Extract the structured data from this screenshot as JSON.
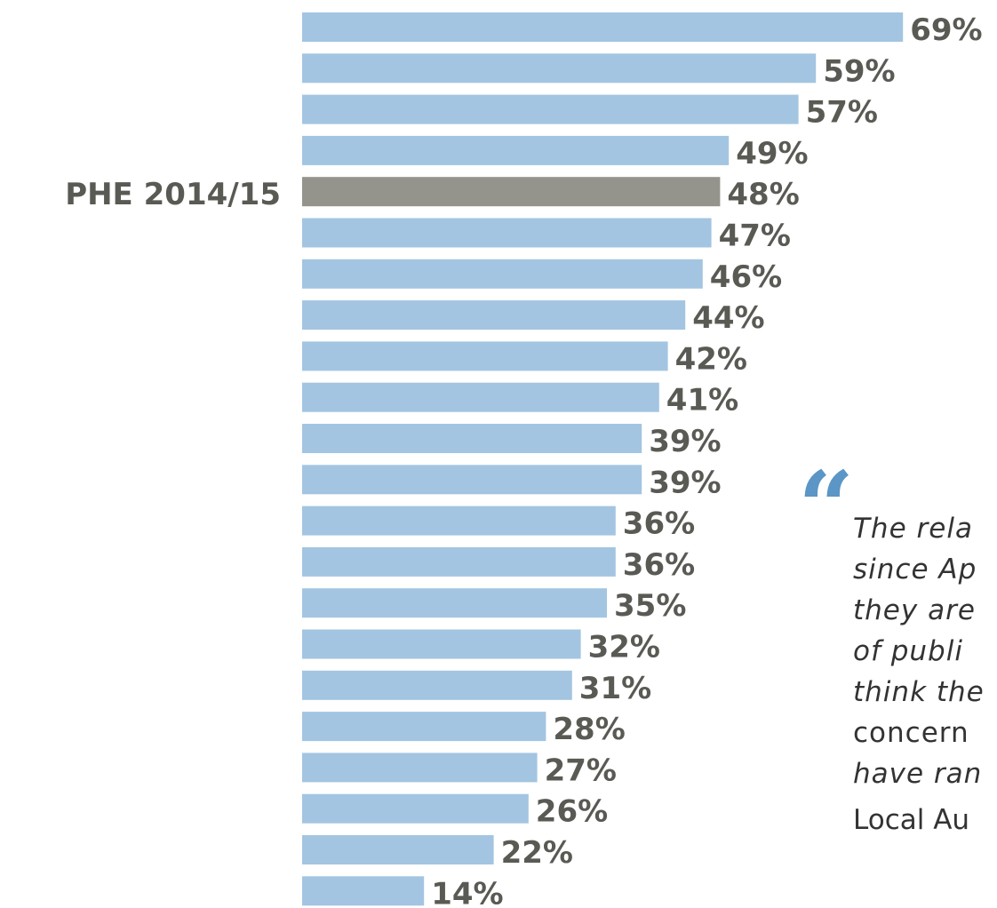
{
  "chart_data": {
    "type": "bar",
    "orientation": "horizontal",
    "categories": [
      "",
      "",
      "",
      "",
      "PHE 2014/15",
      "",
      "",
      "",
      "",
      "",
      "",
      "",
      "",
      "",
      "",
      "",
      "",
      "",
      "",
      "",
      "",
      ""
    ],
    "values": [
      69,
      59,
      57,
      49,
      48,
      47,
      46,
      44,
      42,
      41,
      39,
      39,
      36,
      36,
      35,
      32,
      31,
      28,
      27,
      26,
      22,
      14
    ],
    "value_labels": [
      "69%",
      "59%",
      "57%",
      "49%",
      "48%",
      "47%",
      "46%",
      "44%",
      "42%",
      "41%",
      "39%",
      "39%",
      "36%",
      "36%",
      "35%",
      "32%",
      "31%",
      "28%",
      "27%",
      "26%",
      "22%",
      "14%"
    ],
    "highlight_index": 4,
    "unit": "%",
    "xlim": [
      0,
      100
    ],
    "grid": false,
    "title": "",
    "xlabel": "",
    "ylabel": ""
  },
  "colors": {
    "bar": "#a3c5e1",
    "highlight_bar": "#94948c",
    "label_text": "#5a5a55",
    "quote_mark": "#5b96c6",
    "quote_text": "#333333"
  },
  "quote": {
    "mark": "“",
    "lines": [
      "The rela",
      "since Ap",
      "they are",
      "of publi",
      "think the",
      "concern",
      "have ran"
    ],
    "attribution": "Local Au"
  }
}
